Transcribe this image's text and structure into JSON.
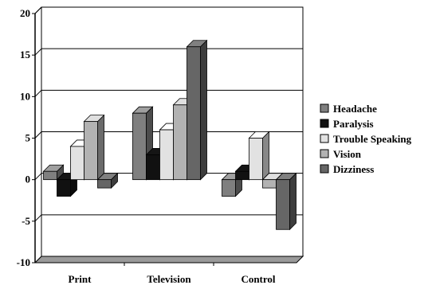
{
  "chart_data": {
    "type": "bar",
    "style": "3d-clustered",
    "categories": [
      "Print",
      "Television",
      "Control"
    ],
    "series": [
      {
        "name": "Headache",
        "values": [
          1,
          8,
          -2
        ],
        "color": "#7f7f7f"
      },
      {
        "name": "Paralysis",
        "values": [
          -2,
          3,
          1
        ],
        "color": "#111111"
      },
      {
        "name": "Trouble Speaking",
        "values": [
          4,
          6,
          5
        ],
        "color": "#e2e2e2"
      },
      {
        "name": "Vision",
        "values": [
          7,
          9,
          -1
        ],
        "color": "#b2b2b2"
      },
      {
        "name": "Dizziness",
        "values": [
          -1,
          16,
          -6
        ],
        "color": "#666666"
      }
    ],
    "ylim": [
      -10,
      20
    ],
    "yticks": [
      "-10",
      "-5",
      "0",
      "5",
      "10",
      "15",
      "20"
    ],
    "grid": true,
    "legend_position": "right"
  }
}
